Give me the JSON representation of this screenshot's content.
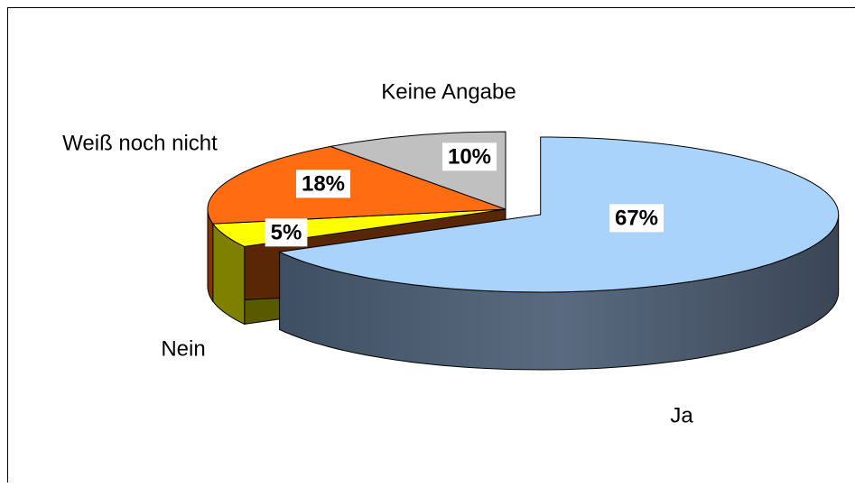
{
  "chart_data": {
    "type": "pie",
    "categories": [
      "Ja",
      "Nein",
      "Weiß noch nicht",
      "Keine Angabe"
    ],
    "values": [
      67,
      5,
      18,
      10
    ],
    "value_labels": [
      "67%",
      "5%",
      "18%",
      "10%"
    ],
    "colors": [
      "#a9d3fb",
      "#ffff00",
      "#ff6c12",
      "#c0c0c0"
    ]
  }
}
